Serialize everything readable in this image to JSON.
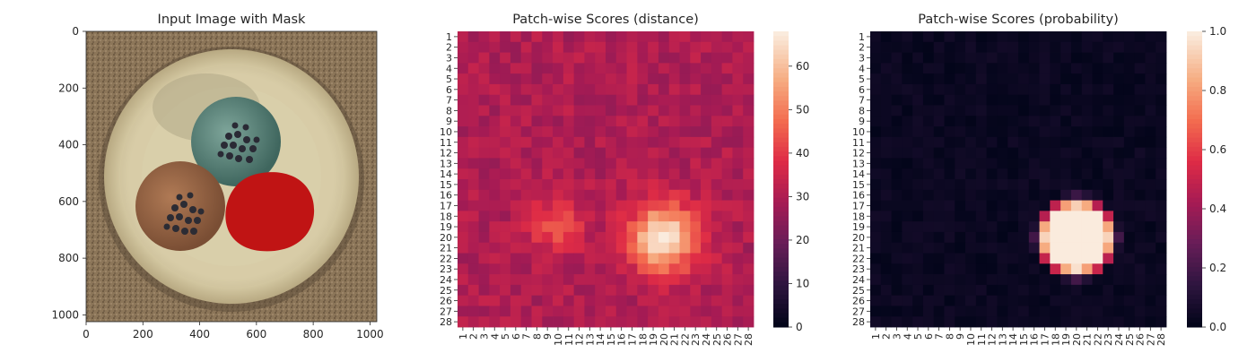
{
  "chart_data": [
    {
      "type": "image",
      "title": "Input Image with Mask",
      "x_ticks": [
        "0",
        "200",
        "400",
        "600",
        "800",
        "1000"
      ],
      "y_ticks": [
        "0",
        "200",
        "400",
        "600",
        "800",
        "1000"
      ],
      "xlim": [
        0,
        1024
      ],
      "ylim": [
        0,
        1024
      ],
      "objects": [
        "cable cross-section with three wires",
        "red defect mask over right wire"
      ],
      "colors": {
        "background": "#8a7458",
        "sheath": "#ddd2aa",
        "wire_teal": "#5f8a80",
        "wire_brown": "#9a6848",
        "mask": "#c01414"
      }
    },
    {
      "type": "heatmap",
      "title": "Patch-wise Scores (distance)",
      "rows": 28,
      "cols": 28,
      "x_tick_labels": [
        "1",
        "2",
        "3",
        "4",
        "5",
        "6",
        "7",
        "8",
        "9",
        "10",
        "11",
        "12",
        "13",
        "14",
        "15",
        "16",
        "17",
        "18",
        "19",
        "20",
        "21",
        "22",
        "23",
        "24",
        "25",
        "26",
        "27",
        "28"
      ],
      "y_tick_labels": [
        "1",
        "2",
        "3",
        "4",
        "5",
        "6",
        "7",
        "8",
        "9",
        "10",
        "11",
        "12",
        "13",
        "14",
        "15",
        "16",
        "17",
        "18",
        "19",
        "20",
        "21",
        "22",
        "23",
        "24",
        "25",
        "26",
        "27",
        "28"
      ],
      "colormap": "rocket",
      "vmin": 0,
      "vmax": 68,
      "colorbar_ticks": [
        "0",
        "10",
        "20",
        "30",
        "40",
        "50",
        "60"
      ],
      "colorbar_values": [
        0,
        10,
        20,
        30,
        40,
        50,
        60
      ],
      "hotspot": {
        "center_row": 20,
        "center_col": 20,
        "max": 68
      },
      "background_level": 30
    },
    {
      "type": "heatmap",
      "title": "Patch-wise Scores (probability)",
      "rows": 28,
      "cols": 28,
      "x_tick_labels": [
        "1",
        "2",
        "3",
        "4",
        "5",
        "6",
        "7",
        "8",
        "9",
        "10",
        "11",
        "12",
        "13",
        "14",
        "15",
        "16",
        "17",
        "18",
        "19",
        "20",
        "21",
        "22",
        "23",
        "24",
        "25",
        "26",
        "27",
        "28"
      ],
      "y_tick_labels": [
        "1",
        "2",
        "3",
        "4",
        "5",
        "6",
        "7",
        "8",
        "9",
        "10",
        "11",
        "12",
        "13",
        "14",
        "15",
        "16",
        "17",
        "18",
        "19",
        "20",
        "21",
        "22",
        "23",
        "24",
        "25",
        "26",
        "27",
        "28"
      ],
      "colormap": "rocket",
      "vmin": 0,
      "vmax": 1,
      "colorbar_ticks": [
        "0.0",
        "0.2",
        "0.4",
        "0.6",
        "0.8",
        "1.0"
      ],
      "colorbar_values": [
        0.0,
        0.2,
        0.4,
        0.6,
        0.8,
        1.0
      ],
      "hotspot": {
        "center_row": 20,
        "center_col": 20,
        "max": 1.0
      },
      "background_level": 0.0
    }
  ]
}
